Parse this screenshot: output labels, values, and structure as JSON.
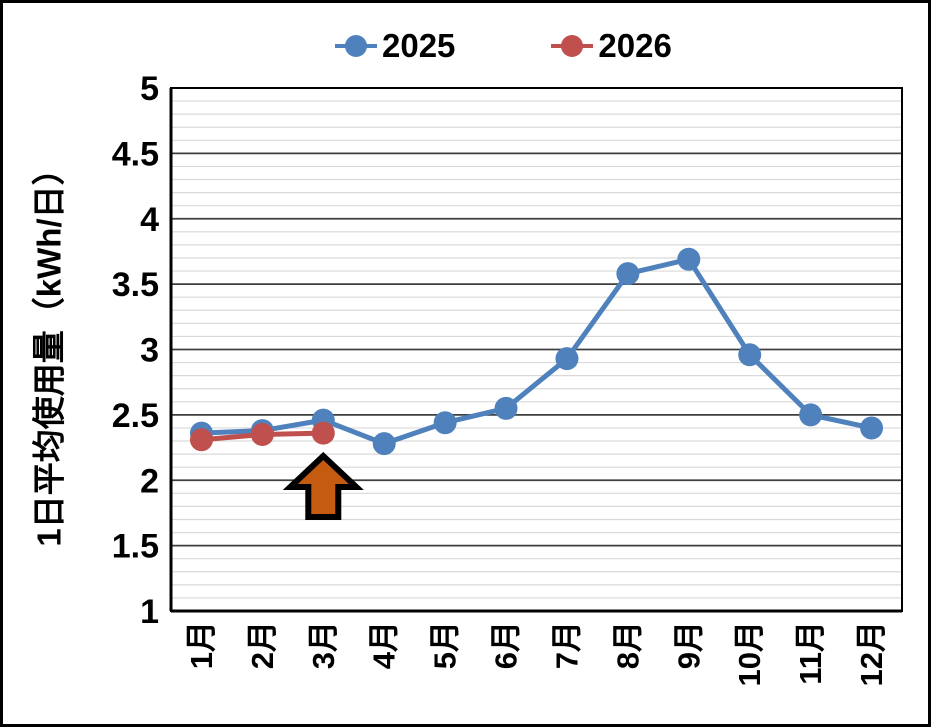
{
  "window": {
    "background": "#ffffff",
    "border_color": "#000000"
  },
  "legend": {
    "position": "top"
  },
  "chart_data": {
    "type": "line",
    "title": "",
    "xlabel": "",
    "ylabel": "1日平均使用量（kWh/日）",
    "categories": [
      "1月",
      "2月",
      "3月",
      "4月",
      "5月",
      "6月",
      "7月",
      "8月",
      "9月",
      "10月",
      "11月",
      "12月"
    ],
    "series": [
      {
        "name": "2025",
        "color": "#4F81BD",
        "values": [
          2.36,
          2.38,
          2.46,
          2.28,
          2.44,
          2.55,
          2.93,
          3.58,
          3.69,
          2.96,
          2.5,
          2.4
        ]
      },
      {
        "name": "2026",
        "color": "#C0504D",
        "values": [
          2.31,
          2.35,
          2.36,
          null,
          null,
          null,
          null,
          null,
          null,
          null,
          null,
          null
        ]
      }
    ],
    "ylim": [
      1,
      5
    ],
    "ytick_step": 0.5,
    "yminor_step": 0.1,
    "ytick_labels": [
      "5",
      "4.5",
      "4",
      "3.5",
      "3",
      "2.5",
      "2",
      "1.5",
      "1"
    ],
    "grid": {
      "major_color": "#3f3f3f",
      "minor_color": "#d9d9d9",
      "grid_on": true
    },
    "legend_position": "top",
    "annotation": {
      "type": "block-arrow-up",
      "target_category": "3月",
      "target_index": 2,
      "fill": "#C55A11",
      "outline": "#000000"
    }
  }
}
